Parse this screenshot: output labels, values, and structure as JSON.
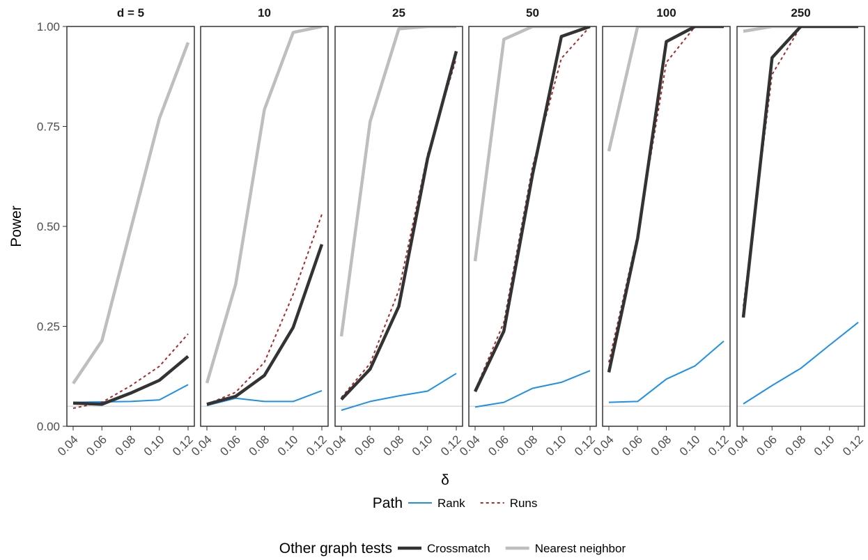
{
  "chart_data": {
    "type": "line",
    "facet_variable": "d",
    "xlabel": "δ",
    "ylabel": "Power",
    "ylim": [
      0,
      1
    ],
    "yticks": [
      "0.00",
      "0.25",
      "0.50",
      "0.75",
      "1.00"
    ],
    "x": [
      0.04,
      0.06,
      0.08,
      0.1,
      0.12
    ],
    "xticks": [
      "0.04",
      "0.06",
      "0.08",
      "0.10",
      "0.12"
    ],
    "reference_line": 0.05,
    "series_styles": {
      "Rank": {
        "color": "#1E90E8",
        "dash": "",
        "width": 2
      },
      "Runs": {
        "color": "#A52A2A",
        "dash": "4,4",
        "width": 2
      },
      "Crossmatch": {
        "color": "#333333",
        "dash": "",
        "width": 4.5
      },
      "Nearest neighbor": {
        "color": "#BEBEBE",
        "dash": "",
        "width": 4.5
      }
    },
    "panels": [
      {
        "label": "d = 5",
        "series": [
          {
            "name": "Rank",
            "values": [
              0.06,
              0.061,
              0.062,
              0.066,
              0.104
            ]
          },
          {
            "name": "Runs",
            "values": [
              0.045,
              0.06,
              0.101,
              0.15,
              0.231
            ]
          },
          {
            "name": "Crossmatch",
            "values": [
              0.058,
              0.055,
              0.083,
              0.115,
              0.175
            ]
          },
          {
            "name": "Nearest neighbor",
            "values": [
              0.107,
              0.214,
              0.492,
              0.77,
              0.96
            ]
          }
        ]
      },
      {
        "label": "10",
        "series": [
          {
            "name": "Rank",
            "values": [
              0.052,
              0.07,
              0.062,
              0.062,
              0.089
            ]
          },
          {
            "name": "Runs",
            "values": [
              0.055,
              0.085,
              0.16,
              0.33,
              0.53
            ]
          },
          {
            "name": "Crossmatch",
            "values": [
              0.055,
              0.075,
              0.127,
              0.247,
              0.455
            ]
          },
          {
            "name": "Nearest neighbor",
            "values": [
              0.108,
              0.355,
              0.792,
              0.985,
              1.0
            ]
          }
        ]
      },
      {
        "label": "25",
        "series": [
          {
            "name": "Rank",
            "values": [
              0.04,
              0.062,
              0.076,
              0.088,
              0.132
            ]
          },
          {
            "name": "Runs",
            "values": [
              0.072,
              0.157,
              0.34,
              0.68,
              0.92
            ]
          },
          {
            "name": "Crossmatch",
            "values": [
              0.067,
              0.143,
              0.3,
              0.67,
              0.938
            ]
          },
          {
            "name": "Nearest neighbor",
            "values": [
              0.225,
              0.762,
              0.994,
              1.0,
              1.0
            ]
          }
        ]
      },
      {
        "label": "50",
        "series": [
          {
            "name": "Rank",
            "values": [
              0.048,
              0.06,
              0.095,
              0.11,
              0.139
            ]
          },
          {
            "name": "Runs",
            "values": [
              0.09,
              0.26,
              0.65,
              0.92,
              1.0
            ]
          },
          {
            "name": "Crossmatch",
            "values": [
              0.087,
              0.238,
              0.63,
              0.975,
              1.0
            ]
          },
          {
            "name": "Nearest neighbor",
            "values": [
              0.413,
              0.968,
              1.0,
              1.0,
              1.0
            ]
          }
        ]
      },
      {
        "label": "100",
        "series": [
          {
            "name": "Rank",
            "values": [
              0.06,
              0.062,
              0.118,
              0.151,
              0.213
            ]
          },
          {
            "name": "Runs",
            "values": [
              0.16,
              0.48,
              0.91,
              1.0,
              1.0
            ]
          },
          {
            "name": "Crossmatch",
            "values": [
              0.135,
              0.47,
              0.962,
              1.0,
              1.0
            ]
          },
          {
            "name": "Nearest neighbor",
            "values": [
              0.688,
              1.0,
              1.0,
              1.0,
              1.0
            ]
          }
        ]
      },
      {
        "label": "250",
        "series": [
          {
            "name": "Rank",
            "values": [
              0.056,
              0.102,
              0.145,
              0.203,
              0.26
            ]
          },
          {
            "name": "Runs",
            "values": [
              0.3,
              0.88,
              1.0,
              1.0,
              1.0
            ]
          },
          {
            "name": "Crossmatch",
            "values": [
              0.272,
              0.922,
              1.0,
              1.0,
              1.0
            ]
          },
          {
            "name": "Nearest neighbor",
            "values": [
              0.988,
              1.0,
              1.0,
              1.0,
              1.0
            ]
          }
        ]
      }
    ],
    "legends": [
      {
        "title": "Path",
        "items": [
          "Rank",
          "Runs"
        ]
      },
      {
        "title": "Other graph tests",
        "items": [
          "Crossmatch",
          "Nearest neighbor"
        ]
      }
    ],
    "legend_position": "bottom"
  }
}
